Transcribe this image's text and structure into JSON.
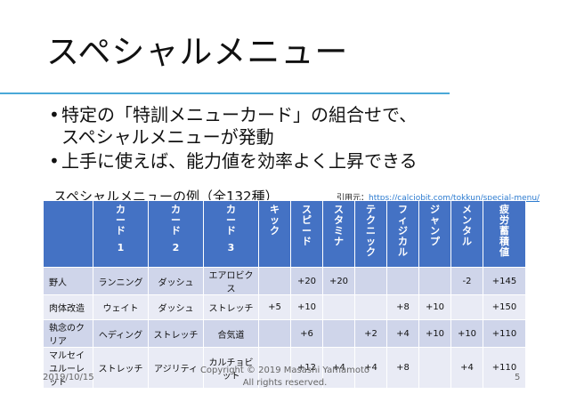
{
  "title": "スペシャルメニュー",
  "bullets": [
    "特定の「特訓メニューカード」の組合せで、",
    "スペシャルメニューが発動",
    "上手に使えば、能力値を効率よく上昇できる"
  ],
  "caption": "スペシャルメニューの例（全132種）",
  "credit": {
    "prefix": "引用元：",
    "link": "https://calciobit.com/tokkun/special-menu/"
  },
  "table": {
    "headers": [
      {
        "text": "",
        "num": ""
      },
      {
        "text": "カード",
        "num": "1"
      },
      {
        "text": "カード",
        "num": "2"
      },
      {
        "text": "カード",
        "num": "3"
      },
      {
        "text": "キック",
        "num": ""
      },
      {
        "text": "スピード",
        "num": ""
      },
      {
        "text": "スタミナ",
        "num": ""
      },
      {
        "text": "テクニック",
        "num": ""
      },
      {
        "text": "フィジカル",
        "num": ""
      },
      {
        "text": "ジャンプ",
        "num": ""
      },
      {
        "text": "メンタル",
        "num": ""
      },
      {
        "text": "疲労蓄積値",
        "num": ""
      }
    ],
    "rows": [
      [
        "野人",
        "ランニング",
        "ダッシュ",
        "エアロビクス",
        "",
        "+20",
        "+20",
        "",
        "",
        "",
        "-2",
        "+145"
      ],
      [
        "肉体改造",
        "ウェイト",
        "ダッシュ",
        "ストレッチ",
        "+5",
        "+10",
        "",
        "",
        "+8",
        "+10",
        "",
        "+150"
      ],
      [
        "執念のクリア",
        "ヘディング",
        "ストレッチ",
        "合気道",
        "",
        "+6",
        "",
        "+2",
        "+4",
        "+10",
        "+10",
        "+110"
      ],
      [
        "マルセイユルーレット",
        "ストレッチ",
        "アジリティ",
        "カルチョビット",
        "",
        "+12",
        "+4",
        "+4",
        "+8",
        "",
        "+4",
        "+110"
      ]
    ]
  },
  "footer": {
    "date": "2019/10/15",
    "copyright_line1": "Copyright © 2019 Masashi Yamamoto",
    "copyright_line2": "All rights reserved.",
    "page": "5"
  }
}
